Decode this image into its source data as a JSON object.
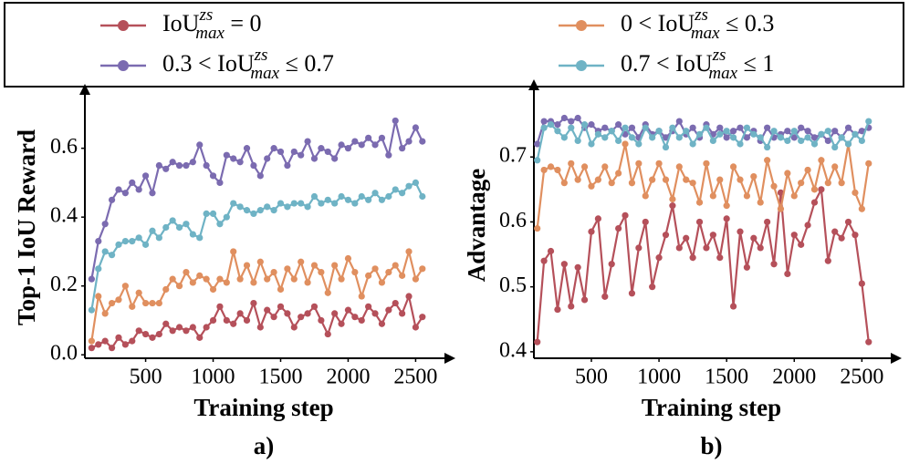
{
  "chart_data": [
    {
      "type": "line",
      "label": "a)",
      "xlabel": "Training step",
      "ylabel": "Top-1 IoU Reward",
      "xlim": [
        50,
        2700
      ],
      "ylim": [
        -0.01,
        0.75
      ],
      "xticks": [
        500,
        1000,
        1500,
        2000,
        2500
      ],
      "yticks": [
        {
          "value": 0,
          "label": "0.0"
        },
        0.2,
        0.4,
        0.6
      ],
      "x": [
        100,
        150,
        200,
        250,
        300,
        350,
        400,
        450,
        500,
        550,
        600,
        650,
        700,
        750,
        800,
        850,
        900,
        950,
        1000,
        1050,
        1100,
        1150,
        1200,
        1250,
        1300,
        1350,
        1400,
        1450,
        1500,
        1550,
        1600,
        1650,
        1700,
        1750,
        1800,
        1850,
        1900,
        1950,
        2000,
        2050,
        2100,
        2150,
        2200,
        2250,
        2300,
        2350,
        2400,
        2450,
        2500,
        2550
      ],
      "series": [
        {
          "name": "IoU_max^zs = 0",
          "color": "#b5505a",
          "values": [
            0.02,
            0.03,
            0.04,
            0.02,
            0.05,
            0.03,
            0.04,
            0.07,
            0.06,
            0.05,
            0.06,
            0.09,
            0.07,
            0.08,
            0.07,
            0.08,
            0.05,
            0.08,
            0.1,
            0.14,
            0.1,
            0.09,
            0.12,
            0.1,
            0.15,
            0.08,
            0.13,
            0.11,
            0.14,
            0.12,
            0.08,
            0.11,
            0.12,
            0.14,
            0.1,
            0.06,
            0.12,
            0.09,
            0.13,
            0.11,
            0.1,
            0.14,
            0.12,
            0.09,
            0.13,
            0.15,
            0.12,
            0.17,
            0.08,
            0.11
          ]
        },
        {
          "name": "0 < IoU_max^zs ≤ 0.3",
          "color": "#e08f5f",
          "values": [
            0.04,
            0.17,
            0.12,
            0.15,
            0.16,
            0.2,
            0.14,
            0.18,
            0.15,
            0.15,
            0.15,
            0.19,
            0.22,
            0.2,
            0.24,
            0.21,
            0.23,
            0.22,
            0.19,
            0.22,
            0.21,
            0.3,
            0.22,
            0.26,
            0.21,
            0.27,
            0.22,
            0.24,
            0.19,
            0.25,
            0.22,
            0.27,
            0.21,
            0.26,
            0.24,
            0.18,
            0.26,
            0.22,
            0.28,
            0.24,
            0.17,
            0.23,
            0.25,
            0.21,
            0.24,
            0.26,
            0.23,
            0.3,
            0.22,
            0.25
          ]
        },
        {
          "name": "0.3 < IoU_max^zs ≤ 0.7",
          "color": "#7b6bb0",
          "values": [
            0.22,
            0.33,
            0.38,
            0.45,
            0.48,
            0.47,
            0.5,
            0.48,
            0.52,
            0.47,
            0.55,
            0.54,
            0.56,
            0.55,
            0.55,
            0.56,
            0.61,
            0.55,
            0.52,
            0.5,
            0.58,
            0.57,
            0.56,
            0.6,
            0.55,
            0.52,
            0.57,
            0.6,
            0.59,
            0.55,
            0.59,
            0.58,
            0.62,
            0.57,
            0.6,
            0.59,
            0.57,
            0.61,
            0.6,
            0.62,
            0.61,
            0.63,
            0.61,
            0.63,
            0.58,
            0.68,
            0.6,
            0.62,
            0.66,
            0.62
          ]
        },
        {
          "name": "0.7 < IoU_max^zs ≤ 1",
          "color": "#6fb3c5",
          "values": [
            0.13,
            0.25,
            0.3,
            0.29,
            0.32,
            0.33,
            0.33,
            0.34,
            0.32,
            0.36,
            0.34,
            0.37,
            0.39,
            0.37,
            0.38,
            0.35,
            0.34,
            0.41,
            0.41,
            0.38,
            0.4,
            0.44,
            0.43,
            0.42,
            0.41,
            0.42,
            0.43,
            0.42,
            0.44,
            0.43,
            0.44,
            0.44,
            0.43,
            0.46,
            0.44,
            0.45,
            0.44,
            0.46,
            0.45,
            0.44,
            0.46,
            0.45,
            0.47,
            0.45,
            0.46,
            0.48,
            0.47,
            0.49,
            0.5,
            0.46
          ]
        }
      ]
    },
    {
      "type": "line",
      "label": "b)",
      "xlabel": "Training step",
      "ylabel": "Advantage",
      "xlim": [
        75,
        2700
      ],
      "ylim": [
        0.39,
        0.8
      ],
      "xticks": [
        500,
        1000,
        1500,
        2000,
        2500
      ],
      "yticks": [
        0.4,
        0.5,
        0.6,
        0.7
      ],
      "x": [
        100,
        150,
        200,
        250,
        300,
        350,
        400,
        450,
        500,
        550,
        600,
        650,
        700,
        750,
        800,
        850,
        900,
        950,
        1000,
        1050,
        1100,
        1150,
        1200,
        1250,
        1300,
        1350,
        1400,
        1450,
        1500,
        1550,
        1600,
        1650,
        1700,
        1750,
        1800,
        1850,
        1900,
        1950,
        2000,
        2050,
        2100,
        2150,
        2200,
        2250,
        2300,
        2350,
        2400,
        2450,
        2500,
        2550
      ],
      "series": [
        {
          "name": "IoU_max^zs = 0",
          "color": "#b5505a",
          "values": [
            0.415,
            0.54,
            0.555,
            0.465,
            0.535,
            0.47,
            0.53,
            0.48,
            0.585,
            0.605,
            0.485,
            0.535,
            0.59,
            0.61,
            0.49,
            0.56,
            0.6,
            0.5,
            0.545,
            0.58,
            0.625,
            0.56,
            0.575,
            0.545,
            0.6,
            0.56,
            0.58,
            0.545,
            0.605,
            0.47,
            0.585,
            0.53,
            0.575,
            0.56,
            0.6,
            0.535,
            0.645,
            0.52,
            0.58,
            0.565,
            0.595,
            0.63,
            0.65,
            0.54,
            0.585,
            0.575,
            0.6,
            0.58,
            0.505,
            0.415
          ]
        },
        {
          "name": "0 < IoU_max^zs ≤ 0.3",
          "color": "#e08f5f",
          "values": [
            0.59,
            0.68,
            0.685,
            0.68,
            0.66,
            0.69,
            0.665,
            0.685,
            0.655,
            0.665,
            0.685,
            0.66,
            0.675,
            0.72,
            0.66,
            0.69,
            0.64,
            0.665,
            0.69,
            0.665,
            0.635,
            0.685,
            0.665,
            0.66,
            0.63,
            0.69,
            0.64,
            0.665,
            0.625,
            0.685,
            0.665,
            0.64,
            0.67,
            0.63,
            0.695,
            0.655,
            0.62,
            0.675,
            0.64,
            0.66,
            0.68,
            0.65,
            0.695,
            0.66,
            0.685,
            0.66,
            0.72,
            0.645,
            0.62,
            0.69
          ]
        },
        {
          "name": "0.3 < IoU_max^zs ≤ 0.7",
          "color": "#7b6bb0",
          "values": [
            0.72,
            0.755,
            0.755,
            0.75,
            0.76,
            0.755,
            0.76,
            0.745,
            0.75,
            0.74,
            0.745,
            0.74,
            0.75,
            0.735,
            0.745,
            0.73,
            0.75,
            0.735,
            0.74,
            0.73,
            0.74,
            0.755,
            0.735,
            0.745,
            0.73,
            0.75,
            0.735,
            0.745,
            0.73,
            0.74,
            0.745,
            0.73,
            0.74,
            0.725,
            0.745,
            0.73,
            0.735,
            0.74,
            0.73,
            0.745,
            0.74,
            0.73,
            0.735,
            0.725,
            0.74,
            0.73,
            0.745,
            0.735,
            0.74,
            0.745
          ]
        },
        {
          "name": "0.7 < IoU_max^zs ≤ 1",
          "color": "#6fb3c5",
          "values": [
            0.695,
            0.745,
            0.75,
            0.74,
            0.73,
            0.745,
            0.725,
            0.75,
            0.72,
            0.735,
            0.73,
            0.74,
            0.725,
            0.745,
            0.73,
            0.72,
            0.745,
            0.73,
            0.74,
            0.715,
            0.745,
            0.73,
            0.74,
            0.72,
            0.735,
            0.745,
            0.725,
            0.735,
            0.74,
            0.73,
            0.72,
            0.745,
            0.735,
            0.73,
            0.715,
            0.74,
            0.73,
            0.725,
            0.74,
            0.725,
            0.73,
            0.72,
            0.735,
            0.74,
            0.715,
            0.73,
            0.72,
            0.735,
            0.725,
            0.755
          ]
        }
      ]
    }
  ]
}
